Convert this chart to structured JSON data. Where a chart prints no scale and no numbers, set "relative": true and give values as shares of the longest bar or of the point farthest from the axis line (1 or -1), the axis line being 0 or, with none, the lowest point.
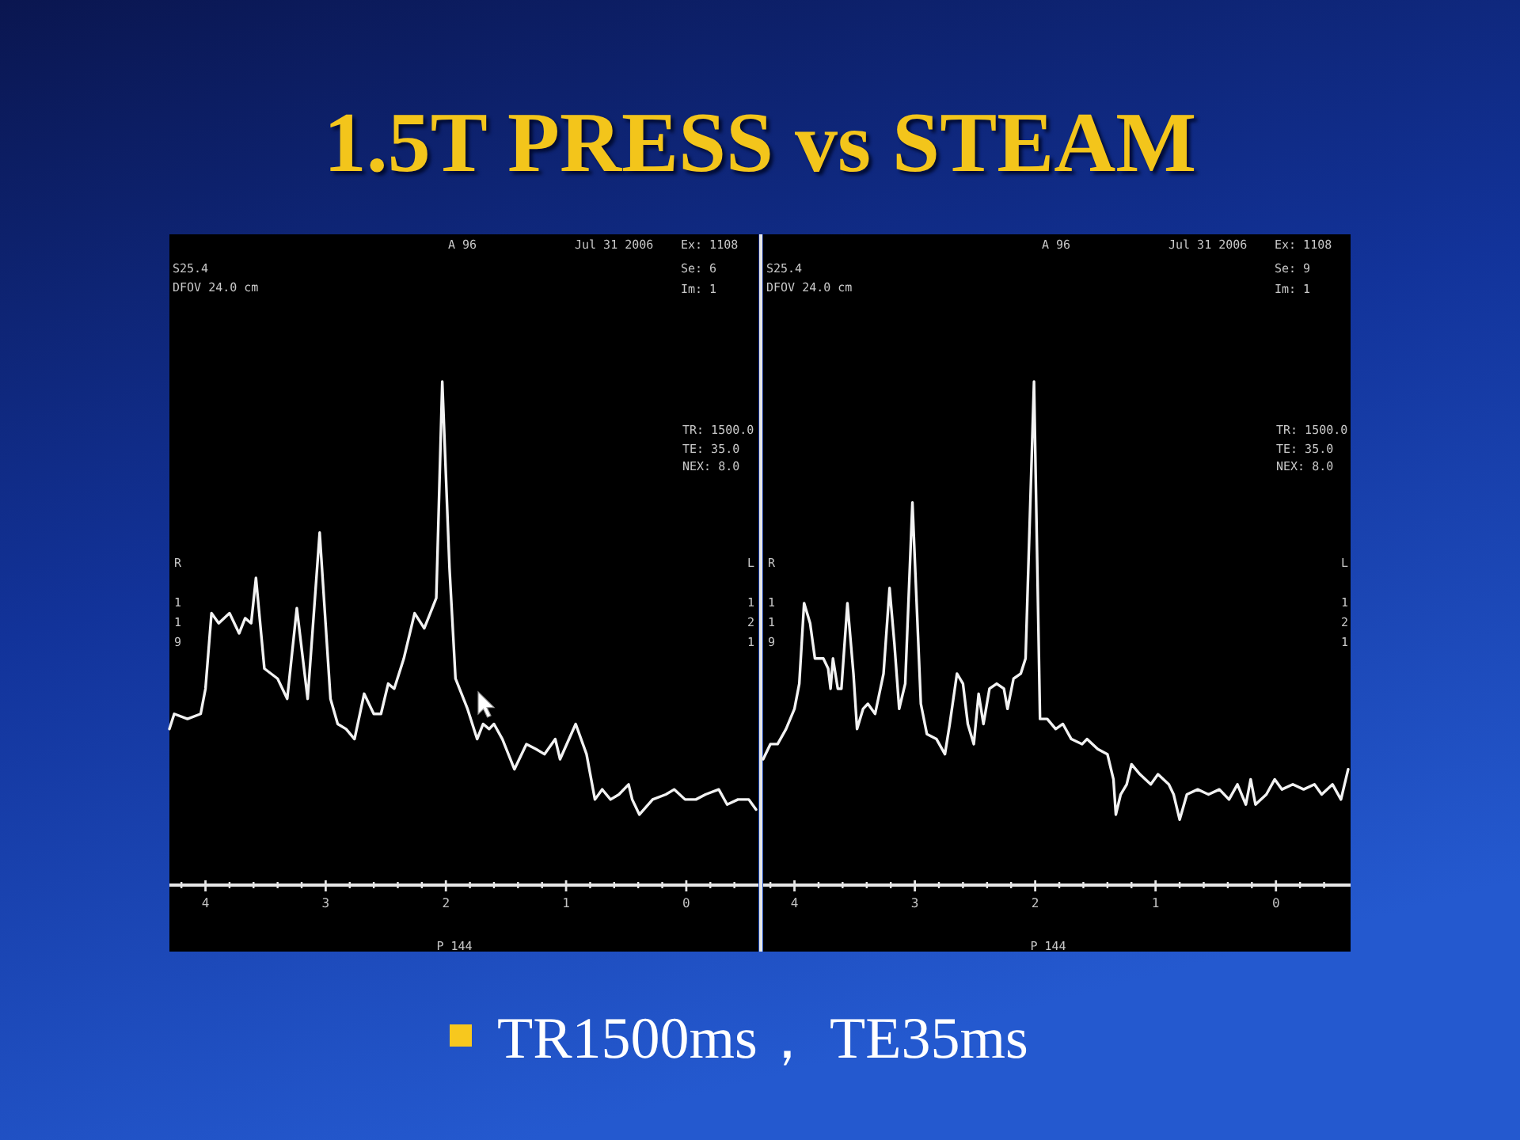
{
  "chart_data": [
    {
      "type": "other",
      "title": "1.5T PRESS vs STEAM",
      "annotations": [
        "TR1500ms， TE35ms"
      ]
    },
    {
      "type": "line",
      "relative": true,
      "xlim": [
        4.3,
        -0.6
      ],
      "xticks": [
        {
          "value": 4.2,
          "label": null
        },
        4,
        {
          "value": 3.8,
          "label": null
        },
        {
          "value": 3.6,
          "label": null
        },
        {
          "value": 3.4,
          "label": null
        },
        {
          "value": 3.2,
          "label": null
        },
        3,
        {
          "value": 2.8,
          "label": null
        },
        {
          "value": 2.6,
          "label": null
        },
        {
          "value": 2.4,
          "label": null
        },
        {
          "value": 2.2,
          "label": null
        },
        2,
        {
          "value": 1.8,
          "label": null
        },
        {
          "value": 1.6,
          "label": null
        },
        {
          "value": 1.4,
          "label": null
        },
        {
          "value": 1.2,
          "label": null
        },
        1,
        {
          "value": 0.8,
          "label": null
        },
        {
          "value": 0.6,
          "label": null
        },
        {
          "value": 0.4,
          "label": null
        },
        {
          "value": 0.2,
          "label": null
        },
        0,
        {
          "value": -0.2,
          "label": null
        },
        {
          "value": -0.4,
          "label": null
        }
      ],
      "series": [
        {
          "color": "#f2f2f2",
          "x": [
            4.3,
            4.26,
            4.15,
            4.04,
            4.0,
            3.95,
            3.89,
            3.8,
            3.72,
            3.67,
            3.62,
            3.58,
            3.51,
            3.4,
            3.32,
            3.24,
            3.15,
            3.05,
            2.96,
            2.9,
            2.83,
            2.76,
            2.68,
            2.6,
            2.54,
            2.48,
            2.43,
            2.35,
            2.26,
            2.18,
            2.13,
            2.08,
            2.03,
            1.97,
            1.92,
            1.82,
            1.74,
            1.69,
            1.64,
            1.6,
            1.53,
            1.43,
            1.33,
            1.25,
            1.18,
            1.09,
            1.05,
            0.92,
            0.83,
            0.76,
            0.7,
            0.63,
            0.56,
            0.48,
            0.45,
            0.39,
            0.28,
            0.17,
            0.1,
            0.01,
            -0.08,
            -0.16,
            -0.27,
            -0.34,
            -0.43,
            -0.52,
            -0.58
          ],
          "values": [
            0.31,
            0.34,
            0.33,
            0.34,
            0.39,
            0.54,
            0.52,
            0.54,
            0.5,
            0.53,
            0.52,
            0.61,
            0.43,
            0.41,
            0.37,
            0.55,
            0.37,
            0.7,
            0.37,
            0.32,
            0.31,
            0.29,
            0.38,
            0.34,
            0.34,
            0.4,
            0.39,
            0.45,
            0.54,
            0.51,
            0.54,
            0.57,
            1,
            0.63,
            0.41,
            0.35,
            0.29,
            0.32,
            0.31,
            0.32,
            0.29,
            0.23,
            0.28,
            0.27,
            0.26,
            0.29,
            0.25,
            0.32,
            0.26,
            0.17,
            0.19,
            0.17,
            0.18,
            0.2,
            0.17,
            0.14,
            0.17,
            0.18,
            0.19,
            0.17,
            0.17,
            0.18,
            0.19,
            0.16,
            0.17,
            0.17,
            0.15
          ]
        }
      ],
      "annotations": [
        "S25.4",
        "DFOV 24.0 cm",
        "A 96",
        "Jul 31 2006",
        "Ex: 1108",
        "Se: 6",
        "Im: 1",
        "TR: 1500.0",
        "TE: 35.0",
        "NEX: 8.0",
        "R",
        "119",
        "L",
        "121",
        "P 144"
      ]
    },
    {
      "type": "line",
      "relative": true,
      "xlim": [
        4.26,
        -0.62
      ],
      "xticks": [
        {
          "value": 4.2,
          "label": null
        },
        4,
        {
          "value": 3.8,
          "label": null
        },
        {
          "value": 3.6,
          "label": null
        },
        {
          "value": 3.4,
          "label": null
        },
        {
          "value": 3.2,
          "label": null
        },
        3,
        {
          "value": 2.8,
          "label": null
        },
        {
          "value": 2.6,
          "label": null
        },
        {
          "value": 2.4,
          "label": null
        },
        {
          "value": 2.2,
          "label": null
        },
        2,
        {
          "value": 1.8,
          "label": null
        },
        {
          "value": 1.6,
          "label": null
        },
        {
          "value": 1.4,
          "label": null
        },
        {
          "value": 1.2,
          "label": null
        },
        1,
        {
          "value": 0.8,
          "label": null
        },
        {
          "value": 0.6,
          "label": null
        },
        {
          "value": 0.4,
          "label": null
        },
        {
          "value": 0.2,
          "label": null
        },
        0,
        {
          "value": -0.2,
          "label": null
        },
        {
          "value": -0.4,
          "label": null
        }
      ],
      "series": [
        {
          "color": "#f2f2f2",
          "x": [
            4.26,
            4.2,
            4.14,
            4.07,
            4.0,
            3.96,
            3.92,
            3.87,
            3.83,
            3.76,
            3.72,
            3.7,
            3.68,
            3.64,
            3.61,
            3.56,
            3.51,
            3.48,
            3.43,
            3.39,
            3.33,
            3.26,
            3.21,
            3.17,
            3.13,
            3.08,
            3.02,
            2.95,
            2.9,
            2.82,
            2.75,
            2.71,
            2.65,
            2.6,
            2.56,
            2.51,
            2.47,
            2.43,
            2.38,
            2.32,
            2.26,
            2.23,
            2.18,
            2.12,
            2.08,
            2.01,
            1.96,
            1.9,
            1.83,
            1.77,
            1.7,
            1.61,
            1.57,
            1.48,
            1.4,
            1.35,
            1.33,
            1.29,
            1.24,
            1.2,
            1.13,
            1.04,
            0.98,
            0.89,
            0.85,
            0.8,
            0.74,
            0.65,
            0.56,
            0.47,
            0.39,
            0.32,
            0.25,
            0.21,
            0.17,
            0.08,
            0.01,
            -0.05,
            -0.14,
            -0.23,
            -0.32,
            -0.38,
            -0.47,
            -0.54,
            -0.6
          ],
          "values": [
            0.25,
            0.28,
            0.28,
            0.31,
            0.35,
            0.4,
            0.56,
            0.52,
            0.45,
            0.45,
            0.43,
            0.39,
            0.45,
            0.39,
            0.39,
            0.56,
            0.42,
            0.31,
            0.35,
            0.36,
            0.34,
            0.42,
            0.59,
            0.48,
            0.35,
            0.4,
            0.76,
            0.36,
            0.3,
            0.29,
            0.26,
            0.32,
            0.42,
            0.4,
            0.32,
            0.28,
            0.38,
            0.32,
            0.39,
            0.4,
            0.39,
            0.35,
            0.41,
            0.42,
            0.45,
            1,
            0.33,
            0.33,
            0.31,
            0.32,
            0.29,
            0.28,
            0.29,
            0.27,
            0.26,
            0.21,
            0.14,
            0.18,
            0.2,
            0.24,
            0.22,
            0.2,
            0.22,
            0.2,
            0.18,
            0.13,
            0.18,
            0.19,
            0.18,
            0.19,
            0.17,
            0.2,
            0.16,
            0.21,
            0.16,
            0.18,
            0.21,
            0.19,
            0.2,
            0.19,
            0.2,
            0.18,
            0.2,
            0.17,
            0.23
          ]
        }
      ],
      "annotations": [
        "S25.4",
        "DFOV 24.0 cm",
        "A 96",
        "Jul 31 2006",
        "Ex: 1108",
        "Se: 9",
        "Im: 1",
        "TR: 1500.0",
        "TE: 35.0",
        "NEX: 8.0",
        "R",
        "119",
        "L",
        "121",
        "P 144"
      ]
    }
  ]
}
